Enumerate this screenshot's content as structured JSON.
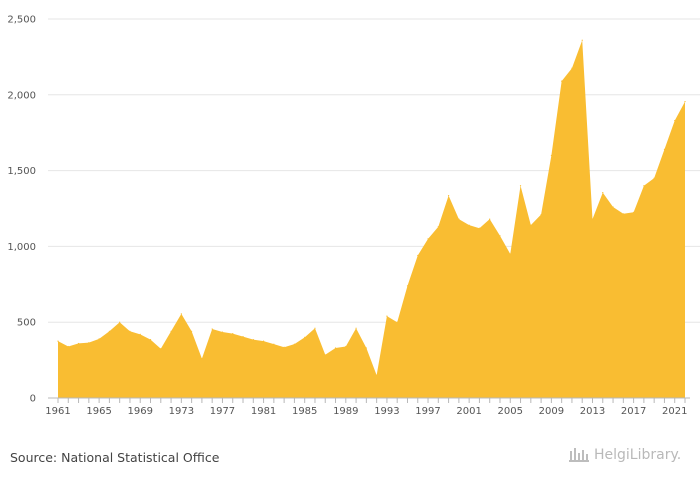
{
  "chart_data": {
    "type": "area",
    "title": "",
    "xlabel": "",
    "ylabel": "",
    "ylim": [
      0,
      2500
    ],
    "yticks": [
      0,
      500,
      1000,
      1500,
      2000,
      2500
    ],
    "ytick_labels": [
      "0",
      "500",
      "1,000",
      "1,500",
      "2,000",
      "2,500"
    ],
    "xticks": [
      1961,
      1965,
      1969,
      1973,
      1977,
      1981,
      1985,
      1989,
      1993,
      1997,
      2001,
      2005,
      2009,
      2013,
      2017,
      2021
    ],
    "grid": true,
    "color": "#F9BD32",
    "x": [
      1961,
      1962,
      1963,
      1964,
      1965,
      1966,
      1967,
      1968,
      1969,
      1970,
      1971,
      1972,
      1973,
      1974,
      1975,
      1976,
      1977,
      1978,
      1979,
      1980,
      1981,
      1982,
      1983,
      1984,
      1985,
      1986,
      1987,
      1988,
      1989,
      1990,
      1991,
      1992,
      1993,
      1994,
      1995,
      1996,
      1997,
      1998,
      1999,
      2000,
      2001,
      2002,
      2003,
      2004,
      2005,
      2006,
      2007,
      2008,
      2009,
      2010,
      2011,
      2012,
      2013,
      2014,
      2015,
      2016,
      2017,
      2018,
      2019,
      2020,
      2021,
      2022
    ],
    "values": [
      375,
      340,
      360,
      365,
      390,
      440,
      500,
      440,
      420,
      385,
      325,
      440,
      555,
      440,
      260,
      455,
      435,
      425,
      405,
      385,
      375,
      355,
      335,
      355,
      400,
      460,
      285,
      330,
      340,
      460,
      330,
      150,
      540,
      500,
      740,
      940,
      1050,
      1130,
      1335,
      1180,
      1140,
      1120,
      1180,
      1070,
      950,
      1400,
      1140,
      1210,
      1600,
      2090,
      2175,
      2360,
      1180,
      1355,
      1260,
      1215,
      1225,
      1400,
      1450,
      1640,
      1830,
      1955
    ]
  },
  "footer": {
    "source": "Source: National Statistical Office",
    "logo_text": "HelgiLibrary."
  }
}
